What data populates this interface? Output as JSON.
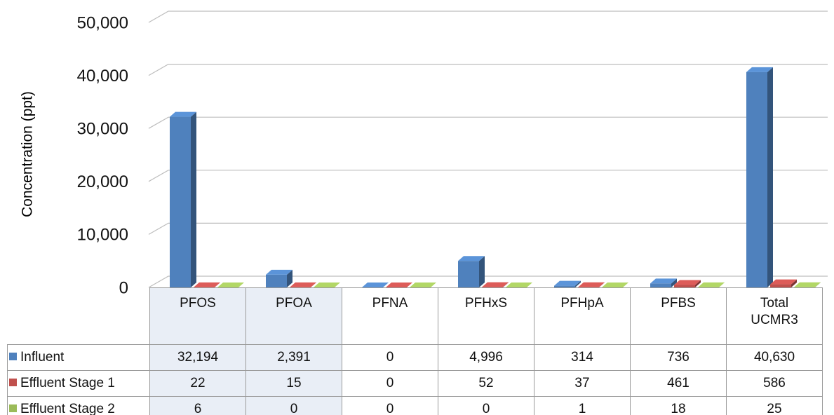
{
  "chart_data": {
    "type": "bar3d",
    "ylabel": "Concentration (ppt)",
    "categories": [
      "PFOS",
      "PFOA",
      "PFNA",
      "PFHxS",
      "PFHpA",
      "PFBS",
      "Total UCMR3"
    ],
    "series": [
      {
        "name": "Influent",
        "color": "#4f81bd",
        "values": [
          32194,
          2391,
          0,
          4996,
          314,
          736,
          40630
        ],
        "value_labels": [
          "32,194",
          "2,391",
          "0",
          "4,996",
          "314",
          "736",
          "40,630"
        ]
      },
      {
        "name": "Effluent Stage 1",
        "color": "#c0504d",
        "values": [
          22,
          15,
          0,
          52,
          37,
          461,
          586
        ],
        "value_labels": [
          "22",
          "15",
          "0",
          "52",
          "37",
          "461",
          "586"
        ]
      },
      {
        "name": "Effluent Stage 2",
        "color": "#9bbb59",
        "values": [
          6,
          0,
          0,
          0,
          1,
          18,
          25
        ],
        "value_labels": [
          "6",
          "0",
          "0",
          "0",
          "1",
          "18",
          "25"
        ]
      }
    ],
    "ylim": [
      0,
      50000
    ],
    "yticks": [
      0,
      {
        "value": 10000,
        "label": "10,000"
      },
      {
        "value": 20000,
        "label": "20,000"
      },
      {
        "value": 30000,
        "label": "30,000"
      },
      {
        "value": 40000,
        "label": "40,000"
      },
      {
        "value": 50000,
        "label": "50,000"
      }
    ],
    "grid": true,
    "shaded_columns": [
      0,
      1
    ]
  }
}
